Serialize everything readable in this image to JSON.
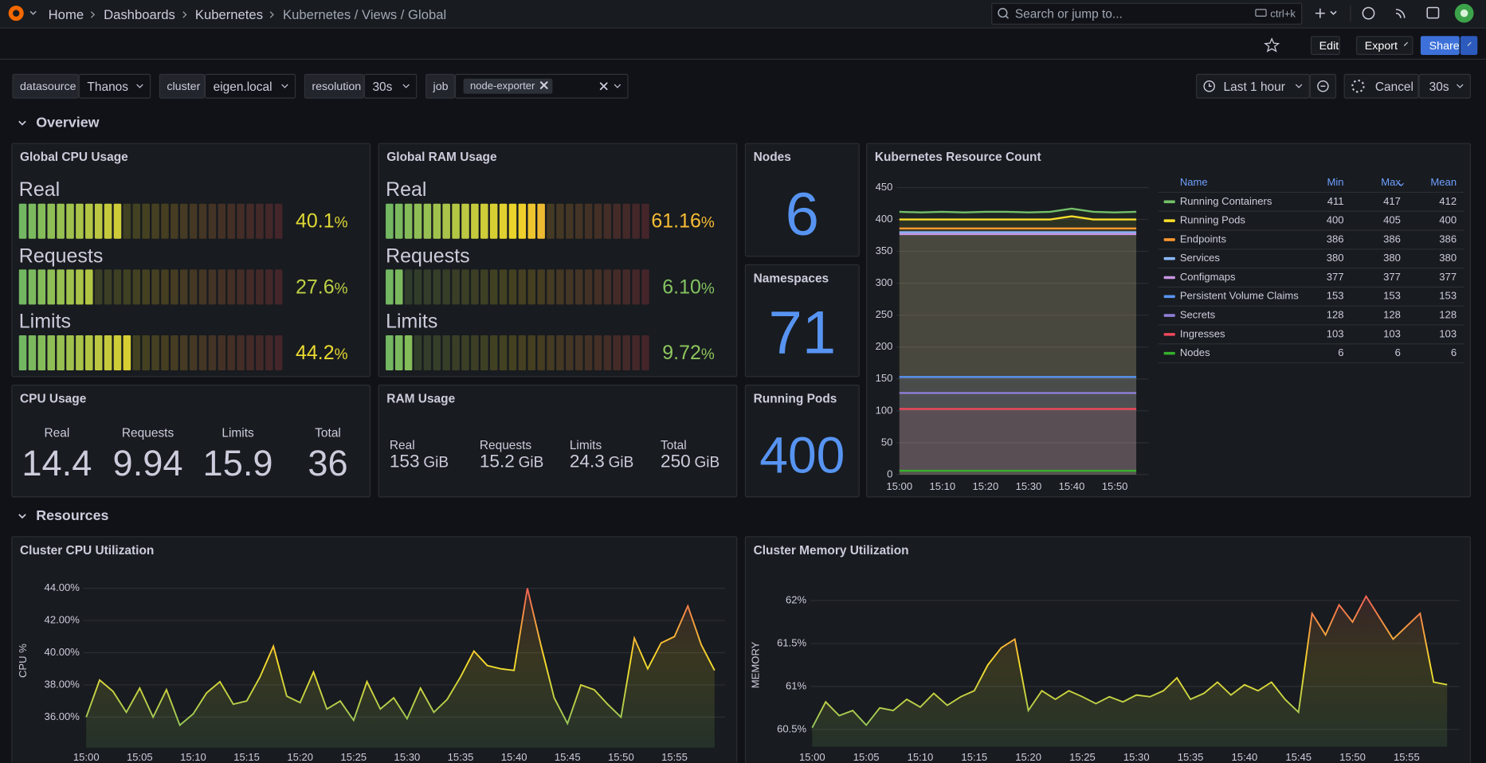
{
  "topbar": {
    "breadcrumbs": [
      "Home",
      "Dashboards",
      "Kubernetes",
      "Kubernetes / Views / Global"
    ],
    "search": "Search or jump to...",
    "shortcut": "ctrl+k"
  },
  "toolbar": {
    "edit": "Edit",
    "export": "Export",
    "share": "Share"
  },
  "variables": [
    {
      "label": "datasource",
      "value": "Thanos"
    },
    {
      "label": "cluster",
      "value": "eigen.local"
    },
    {
      "label": "resolution",
      "value": "30s"
    },
    {
      "label": "job",
      "value": "node-exporter"
    }
  ],
  "time_controls": {
    "range": "Last 1 hour",
    "cancel": "Cancel",
    "refresh": "30s"
  },
  "rows": [
    "Overview",
    "Resources"
  ],
  "gauges": [
    {
      "title": "Global CPU Usage",
      "unit": "%",
      "max": 100,
      "color_scheme": [
        "#73bf69",
        "#fade2a",
        "#f2495c"
      ],
      "items": [
        {
          "name": "Real",
          "value": 40.1
        },
        {
          "name": "Requests",
          "value": 27.6
        },
        {
          "name": "Limits",
          "value": 44.2
        }
      ]
    },
    {
      "title": "Global RAM Usage",
      "unit": "%",
      "max": 100,
      "color_scheme": [
        "#73bf69",
        "#fade2a",
        "#f2495c"
      ],
      "items": [
        {
          "name": "Real",
          "value": 61.16
        },
        {
          "name": "Requests",
          "value": 6.1,
          "value_label": "6.10"
        },
        {
          "name": "Limits",
          "value": 9.72
        }
      ]
    }
  ],
  "stats": [
    {
      "title": "Nodes",
      "value": 6,
      "color": "#5794f2"
    },
    {
      "title": "Namespaces",
      "value": 71,
      "color": "#5794f2"
    },
    {
      "title": "Running Pods",
      "value": 400,
      "color": "#5794f2"
    }
  ],
  "cpu_usage": {
    "title": "CPU Usage",
    "items": [
      {
        "name": "Real",
        "value": 14.4
      },
      {
        "name": "Requests",
        "value": 9.94
      },
      {
        "name": "Limits",
        "value": 15.9
      },
      {
        "name": "Total",
        "value": 36
      }
    ]
  },
  "ram_usage": {
    "title": "RAM Usage",
    "unit": "GiB",
    "items": [
      {
        "name": "Real",
        "value": 153
      },
      {
        "name": "Requests",
        "value": 15.2
      },
      {
        "name": "Limits",
        "value": 24.3
      },
      {
        "name": "Total",
        "value": 250
      }
    ]
  },
  "chart_data": [
    {
      "type": "line",
      "title": "Kubernetes Resource Count",
      "categories": [
        "15:00",
        null,
        "15:10",
        null,
        "15:20",
        null,
        "15:30",
        null,
        "15:40",
        null,
        "15:50",
        null
      ],
      "ylim": [
        0,
        450
      ],
      "yticks": [
        0,
        50,
        100,
        150,
        200,
        250,
        300,
        350,
        400,
        450
      ],
      "grid": true,
      "legend_columns": [
        "Name",
        "Min",
        "Max",
        "Mean"
      ],
      "series": [
        {
          "name": "Running Containers",
          "color": "#73bf69",
          "values": [
            412,
            411,
            412,
            411,
            412,
            412,
            411,
            412,
            417,
            412,
            411,
            412
          ],
          "min": 411,
          "max": 417,
          "mean": 412
        },
        {
          "name": "Running Pods",
          "color": "#fade2a",
          "values": [
            400,
            400,
            400,
            400,
            400,
            400,
            400,
            400,
            405,
            400,
            400,
            400
          ],
          "min": 400,
          "max": 405,
          "mean": 400
        },
        {
          "name": "Endpoints",
          "color": "#ff9830",
          "values": [
            386,
            386,
            386,
            386,
            386,
            386,
            386,
            386,
            386,
            386,
            386,
            386
          ],
          "min": 386,
          "max": 386,
          "mean": 386
        },
        {
          "name": "Services",
          "color": "#8ab8ff",
          "values": [
            380,
            380,
            380,
            380,
            380,
            380,
            380,
            380,
            380,
            380,
            380,
            380
          ],
          "min": 380,
          "max": 380,
          "mean": 380
        },
        {
          "name": "Configmaps",
          "color": "#ca95e5",
          "values": [
            377,
            377,
            377,
            377,
            377,
            377,
            377,
            377,
            377,
            377,
            377,
            377
          ],
          "min": 377,
          "max": 377,
          "mean": 377
        },
        {
          "name": "Persistent Volume Claims",
          "color": "#5794f2",
          "values": [
            153,
            153,
            153,
            153,
            153,
            153,
            153,
            153,
            153,
            153,
            153,
            153
          ],
          "min": 153,
          "max": 153,
          "mean": 153
        },
        {
          "name": "Secrets",
          "color": "#8f7ed8",
          "values": [
            128,
            128,
            128,
            128,
            128,
            128,
            128,
            128,
            128,
            128,
            128,
            128
          ],
          "min": 128,
          "max": 128,
          "mean": 128
        },
        {
          "name": "Ingresses",
          "color": "#f2495c",
          "values": [
            103,
            103,
            103,
            103,
            103,
            103,
            103,
            103,
            103,
            103,
            103,
            103
          ],
          "min": 103,
          "max": 103,
          "mean": 103
        },
        {
          "name": "Nodes",
          "color": "#37b02d",
          "values": [
            6,
            6,
            6,
            6,
            6,
            6,
            6,
            6,
            6,
            6,
            6,
            6
          ],
          "min": 6,
          "max": 6,
          "mean": 6
        }
      ]
    },
    {
      "type": "line",
      "title": "Cluster CPU Utilization",
      "y_label": "CPU %",
      "categories": [
        "15:00",
        null,
        null,
        null,
        "15:05",
        null,
        null,
        null,
        "15:10",
        null,
        null,
        null,
        "15:15",
        null,
        null,
        null,
        "15:20",
        null,
        null,
        null,
        "15:25",
        null,
        null,
        null,
        "15:30",
        null,
        null,
        null,
        "15:35",
        null,
        null,
        null,
        "15:40",
        null,
        null,
        null,
        "15:45",
        null,
        null,
        null,
        "15:50",
        null,
        null,
        null,
        "15:55",
        null,
        null,
        null
      ],
      "values": [
        36.0,
        38.3,
        37.6,
        36.3,
        37.8,
        36.0,
        37.7,
        35.5,
        36.2,
        37.5,
        38.2,
        36.8,
        37.0,
        38.5,
        40.4,
        37.3,
        36.9,
        38.8,
        36.5,
        37.0,
        35.8,
        38.2,
        36.5,
        37.2,
        35.9,
        37.8,
        36.3,
        37.1,
        38.5,
        40.1,
        39.2,
        39.0,
        38.9,
        44.0,
        40.5,
        37.2,
        35.6,
        38.0,
        37.7,
        36.8,
        36.0,
        40.9,
        39.0,
        40.6,
        41.0,
        42.9,
        40.5,
        38.9
      ],
      "color_scheme": [
        "#73bf69",
        "#fade2a",
        "#f2495c"
      ],
      "ylim": [
        34.1,
        44.9
      ],
      "yticks": [
        {
          "value": 36,
          "label": "36.00%"
        },
        {
          "value": 38,
          "label": "38.00%"
        },
        {
          "value": 40,
          "label": "40.00%"
        },
        {
          "value": 42,
          "label": "42.00%"
        },
        {
          "value": 44,
          "label": "44.00%"
        }
      ],
      "grid": true
    },
    {
      "type": "line",
      "title": "Cluster Memory Utilization",
      "y_label": "MEMORY",
      "categories": [
        "15:00",
        null,
        null,
        null,
        "15:05",
        null,
        null,
        null,
        "15:10",
        null,
        null,
        null,
        "15:15",
        null,
        null,
        null,
        "15:20",
        null,
        null,
        null,
        "15:25",
        null,
        null,
        null,
        "15:30",
        null,
        null,
        null,
        "15:35",
        null,
        null,
        null,
        "15:40",
        null,
        null,
        null,
        "15:45",
        null,
        null,
        null,
        "15:50",
        null,
        null,
        null,
        "15:55",
        null,
        null,
        null
      ],
      "values": [
        60.52,
        60.82,
        60.66,
        60.72,
        60.55,
        60.75,
        60.72,
        60.85,
        60.76,
        60.92,
        60.78,
        60.88,
        60.95,
        61.25,
        61.45,
        61.55,
        60.72,
        60.95,
        60.85,
        60.95,
        60.88,
        60.8,
        60.88,
        60.82,
        60.9,
        60.88,
        60.95,
        61.1,
        60.85,
        60.92,
        61.05,
        60.9,
        61.02,
        60.95,
        61.05,
        60.85,
        60.7,
        61.85,
        61.6,
        61.95,
        61.75,
        62.05,
        61.8,
        61.55,
        61.7,
        61.85,
        61.05,
        61.02
      ],
      "color_scheme": [
        "#73bf69",
        "#fade2a",
        "#f2495c"
      ],
      "ylim": [
        60.3,
        62.2
      ],
      "yticks": [
        {
          "value": 60.5,
          "label": "60.5%"
        },
        {
          "value": 61,
          "label": "61%"
        },
        {
          "value": 61.5,
          "label": "61.5%"
        },
        {
          "value": 62,
          "label": "62%"
        }
      ],
      "grid": true
    }
  ]
}
